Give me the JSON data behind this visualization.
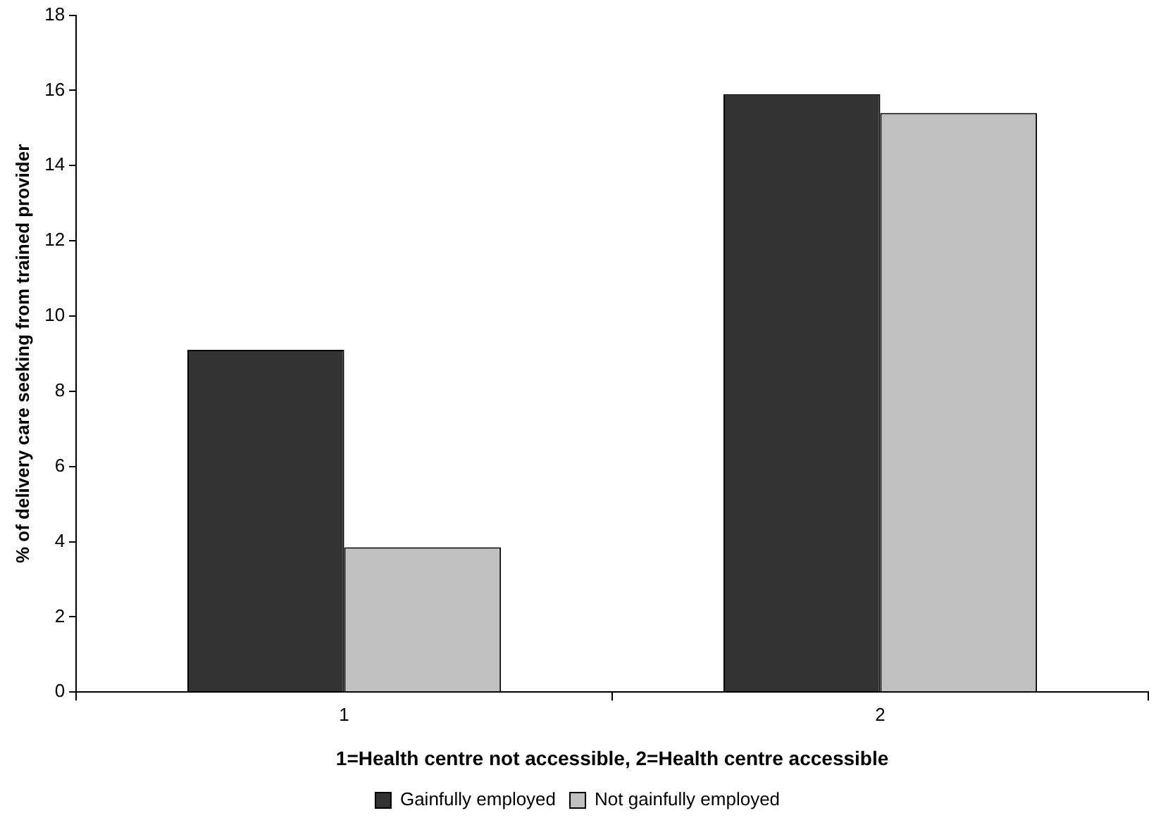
{
  "chart_data": {
    "type": "bar",
    "xlabel": "1=Health centre not accessible, 2=Health centre accessible",
    "ylabel": "% of delivery care seeking from trained provider",
    "categories": [
      "1",
      "2"
    ],
    "series": [
      {
        "name": "Gainfully employed",
        "color": "#333333",
        "values": [
          9.1,
          15.9
        ]
      },
      {
        "name": "Not gainfully employed",
        "color": "#c0c0c0",
        "values": [
          3.85,
          15.4
        ]
      }
    ],
    "ylim": [
      0,
      18
    ],
    "yticks": [
      0,
      2,
      4,
      6,
      8,
      10,
      12,
      14,
      16,
      18
    ],
    "grid": false,
    "legend": "bottom"
  }
}
